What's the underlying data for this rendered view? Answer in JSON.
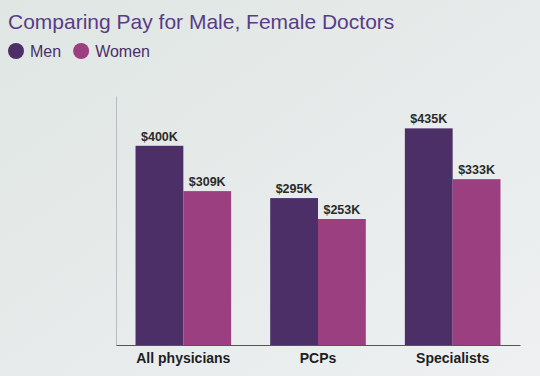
{
  "chart_data": {
    "type": "bar",
    "title": "Comparing Pay for Male, Female Doctors",
    "categories": [
      "All physicians",
      "PCPs",
      "Specialists"
    ],
    "series": [
      {
        "name": "Men",
        "color": "#4b2f66",
        "values": [
          400,
          295,
          435
        ],
        "value_labels": [
          "$400K",
          "$295K",
          "$435K"
        ]
      },
      {
        "name": "Women",
        "color": "#9c3f80",
        "values": [
          309,
          253,
          333
        ],
        "value_labels": [
          "$309K",
          "$253K",
          "$333K"
        ]
      }
    ],
    "ylim": [
      0,
      500
    ],
    "legend": "top-left",
    "data_labels": true,
    "tick_labels": "x",
    "grid": false
  }
}
